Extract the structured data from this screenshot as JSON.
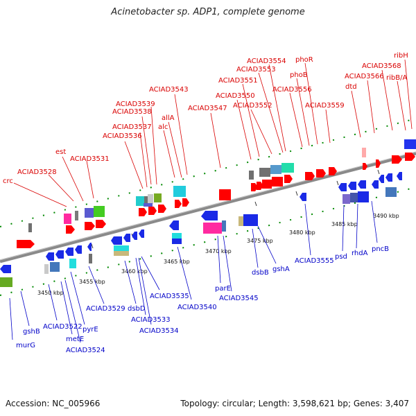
{
  "title": "Acinetobacter sp. ADP1, complete genome",
  "footer": {
    "accession": "Accession: NC_005966",
    "summary": "Topology: circular; Length: 3,598,621 bp; Genes: 3,407"
  },
  "colors": {
    "forward_label": "#d90000",
    "reverse_label": "#0000c8",
    "axis": "#8a8a8a",
    "ticks": "#008800"
  },
  "kbp_ticks": [
    "3450 kbp",
    "3455 kbp",
    "3460 kbp",
    "3465 kbp",
    "3470 kbp",
    "3475 kbp",
    "3480 kbp",
    "3485 kbp",
    "3490 kbp"
  ],
  "forward_labels": [
    "crc",
    "ACIAD3528",
    "est",
    "ACIAD3531",
    "ACIAD3536",
    "ACIAD3537",
    "ACIAD3538",
    "ACIAD3539",
    "alc",
    "allA",
    "ACIAD3543",
    "ACIAD3547",
    "ACIAD3550",
    "ACIAD3551",
    "ACIAD3552",
    "ACIAD3553",
    "ACIAD3554",
    "ACIAD3556",
    "phoB",
    "phoR",
    "ACIAD3559",
    "dtd",
    "ACIAD3566",
    "ACIAD3568",
    "ribB/A",
    "ribH"
  ],
  "reverse_labels": [
    "gshB",
    "murG",
    "ACIAD3522",
    "metE",
    "ACIAD3524",
    "pyrE",
    "ACIAD3529",
    "dsbD",
    "ACIAD3533",
    "ACIAD3534",
    "ACIAD3535",
    "ACIAD3540",
    "parE",
    "ACIAD3545",
    "dsbB",
    "gshA",
    "ACIAD3555",
    "psd",
    "rhdA",
    "pncB"
  ]
}
